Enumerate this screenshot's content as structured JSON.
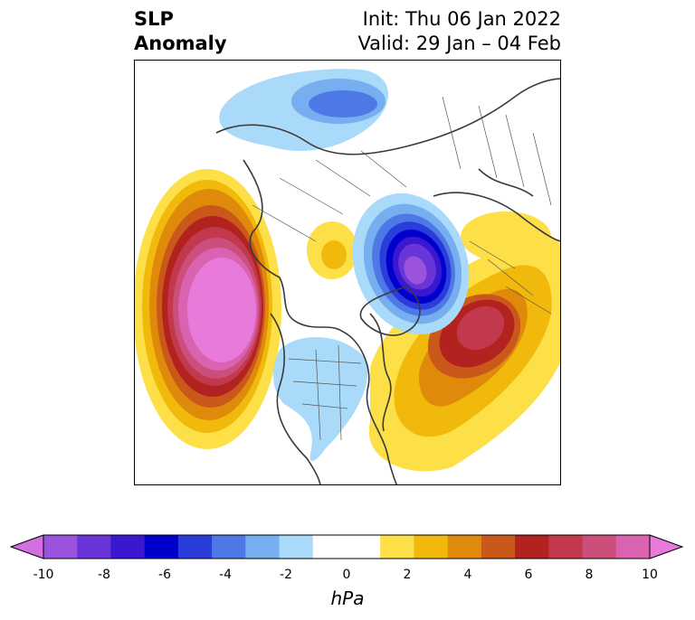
{
  "title": {
    "variable_line1": "SLP",
    "variable_line2": "Anomaly",
    "init": "Init: Thu 06 Jan 2022",
    "valid": "Valid: 29 Jan – 04 Feb"
  },
  "colorbar": {
    "unit": "hPa",
    "ticks": [
      "-10",
      "-8",
      "-6",
      "-4",
      "-2",
      "0",
      "2",
      "4",
      "6",
      "8",
      "10"
    ],
    "colors": [
      "#d36fe0",
      "#9b52dc",
      "#6a35d8",
      "#3b17d1",
      "#0000cd",
      "#2a3ddb",
      "#4e78e6",
      "#76aef0",
      "#aadaf9",
      "#ffffff",
      "#ffffff",
      "#fde047",
      "#f1b90b",
      "#e08a0b",
      "#c9581a",
      "#b2221f",
      "#c2384c",
      "#cc4e7a",
      "#d963b0",
      "#e87ad9"
    ],
    "extend": "both"
  },
  "map": {
    "projection": "north-polar-stereographic",
    "features": [
      {
        "name": "positive-anomaly",
        "region": "North Pacific / Gulf of Alaska",
        "peak_hpa": 10
      },
      {
        "name": "positive-anomaly",
        "region": "North Atlantic",
        "peak_hpa": 8
      },
      {
        "name": "negative-anomaly",
        "region": "Barents-Kara Seas / Arctic",
        "min_hpa": -10
      },
      {
        "name": "negative-anomaly",
        "region": "Central Siberia",
        "min_hpa": -5
      },
      {
        "name": "negative-anomaly",
        "region": "Central and Eastern United States",
        "min_hpa": -2
      },
      {
        "name": "positive-anomaly",
        "region": "Northeast Siberia / Chukotka",
        "peak_hpa": 3
      }
    ]
  }
}
